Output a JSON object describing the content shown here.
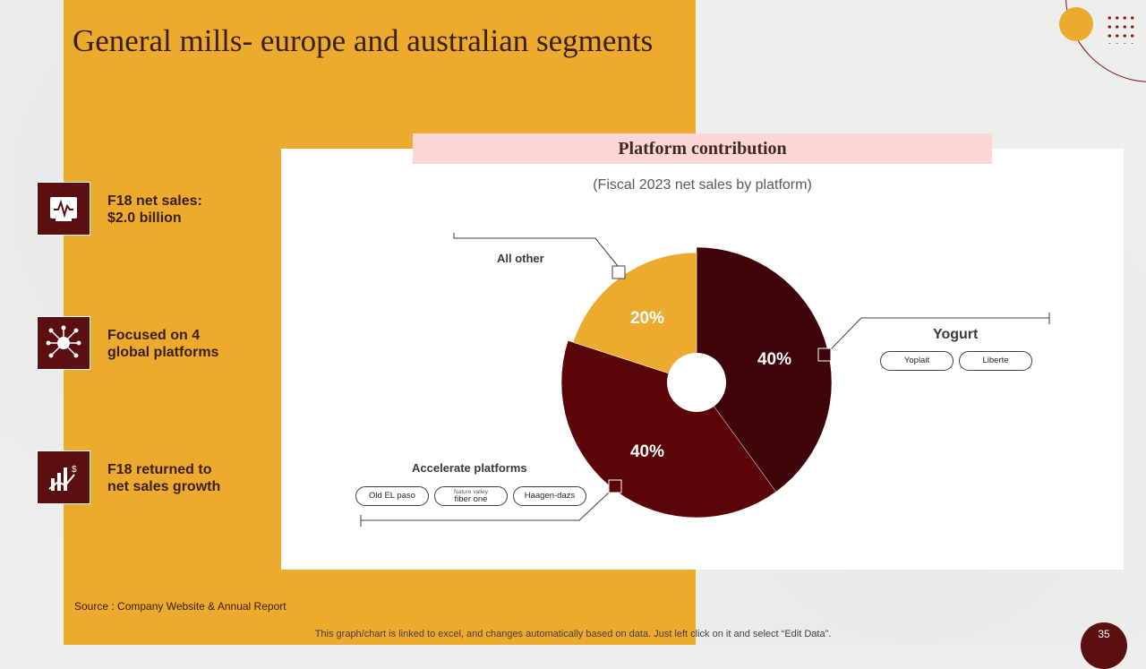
{
  "slide": {
    "title": "General mills- europe and australian segments",
    "page_number": "35",
    "source": "Source : Company Website & Annual Report",
    "footer_note": "This graph/chart is linked to excel,  and changes automatically based on data. Just left click on it and select “Edit Data”."
  },
  "features": [
    {
      "icon": "line-chart-icon",
      "text_line1": "F18 net sales:",
      "text_line2": "$2.0 billion"
    },
    {
      "icon": "global-network-icon",
      "text_line1": "Focused on 4",
      "text_line2": "global platforms"
    },
    {
      "icon": "bar-growth-icon",
      "text_line1": "F18 returned to",
      "text_line2": "net sales growth"
    }
  ],
  "chart_data": {
    "type": "pie",
    "title": "Platform contribution",
    "subtitle": "(Fiscal 2023 net sales by platform)",
    "categories": [
      "Yogurt",
      "Accelerate platforms",
      "All other"
    ],
    "values": [
      40,
      40,
      20
    ],
    "data_labels": [
      "40%",
      "40%",
      "20%"
    ],
    "colors": [
      "#3f0408",
      "#5c0508",
      "#ecaa2e"
    ],
    "annotations": {
      "yogurt_brands": [
        "Yoplait",
        "Liberte"
      ],
      "accelerate_brands": [
        {
          "small": "",
          "main": "Old EL paso"
        },
        {
          "small": "Nature valley",
          "main": "fiber one"
        },
        {
          "small": "",
          "main": "Haagen-dazs"
        }
      ]
    }
  },
  "colors": {
    "accent_orange": "#ecaa2e",
    "dark_maroon": "#5b0f0f",
    "title_bar_pink": "#fdd5d5"
  }
}
